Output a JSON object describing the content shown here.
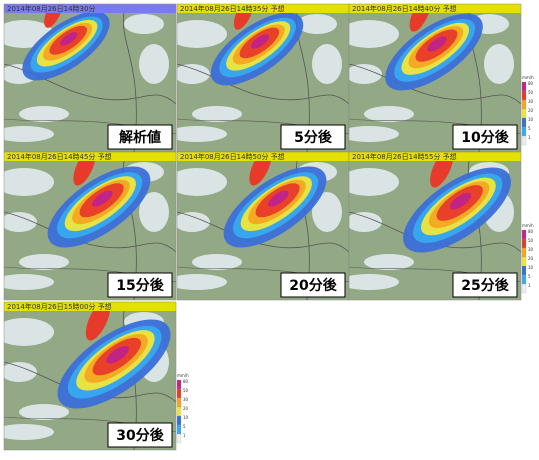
{
  "panels": [
    {
      "header": "2014年08月26日14時30分",
      "label": "解析値"
    },
    {
      "header": "2014年08月26日14時35分 予想",
      "label": "5分後"
    },
    {
      "header": "2014年08月26日14時40分 予想",
      "label": "10分後"
    },
    {
      "header": "2014年08月26日14時45分 予想",
      "label": "15分後"
    },
    {
      "header": "2014年08月26日14時50分 予想",
      "label": "20分後"
    },
    {
      "header": "2014年08月26日14時55分 予想",
      "label": "25分後"
    },
    {
      "header": "2014年08月26日15時00分 予想",
      "label": "30分後"
    }
  ],
  "colorbar": {
    "unit": "mm/h",
    "labels": [
      "80",
      "50",
      "30",
      "20",
      "10",
      "5",
      "1"
    ]
  }
}
